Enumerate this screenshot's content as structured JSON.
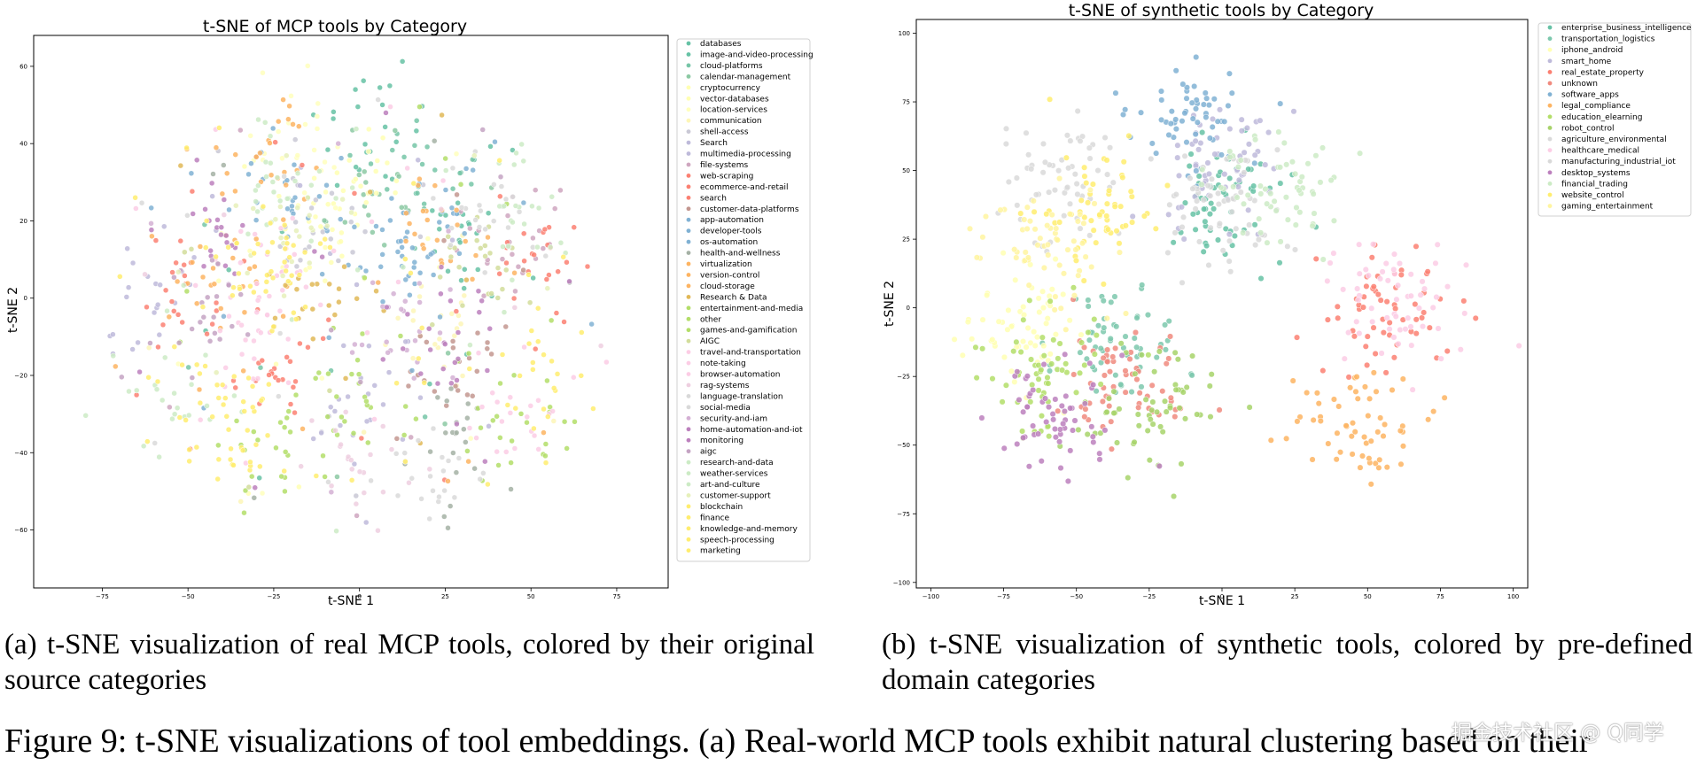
{
  "chart_data": [
    {
      "type": "scatter",
      "title": "t-SNE of MCP tools by Category",
      "xlabel": "t-SNE 1",
      "ylabel": "t-SNE 2",
      "xlim": [
        -95,
        90
      ],
      "ylim": [
        -75,
        68
      ],
      "xticks": [
        -75,
        -50,
        -25,
        0,
        25,
        50,
        75
      ],
      "yticks": [
        -60,
        -40,
        -20,
        0,
        20,
        40,
        60
      ],
      "legend_position": "right",
      "categories": [
        {
          "name": "databases",
          "color": "#66c2a5"
        },
        {
          "name": "image-and-video-processing",
          "color": "#66c2a5"
        },
        {
          "name": "cloud-platforms",
          "color": "#76c5a7"
        },
        {
          "name": "calendar-management",
          "color": "#8cc9a3"
        },
        {
          "name": "cryptocurrency",
          "color": "#ffffb3"
        },
        {
          "name": "vector-databases",
          "color": "#ffffb3"
        },
        {
          "name": "location-services",
          "color": "#ffffbd"
        },
        {
          "name": "communication",
          "color": "#fdf6b7"
        },
        {
          "name": "shell-access",
          "color": "#c9c8d5"
        },
        {
          "name": "Search",
          "color": "#bebada"
        },
        {
          "name": "multimedia-processing",
          "color": "#bebada"
        },
        {
          "name": "file-systems",
          "color": "#cfa6bf"
        },
        {
          "name": "web-scraping",
          "color": "#fb8072"
        },
        {
          "name": "ecommerce-and-retail",
          "color": "#fb8072"
        },
        {
          "name": "search",
          "color": "#fb8072"
        },
        {
          "name": "customer-data-platforms",
          "color": "#c3968f"
        },
        {
          "name": "app-automation",
          "color": "#80b1d3"
        },
        {
          "name": "developer-tools",
          "color": "#80b1d3"
        },
        {
          "name": "os-automation",
          "color": "#80b1d3"
        },
        {
          "name": "health-and-wellness",
          "color": "#a5b1a5"
        },
        {
          "name": "virtualization",
          "color": "#fdb462"
        },
        {
          "name": "version-control",
          "color": "#fdb462"
        },
        {
          "name": "cloud-storage",
          "color": "#fdb462"
        },
        {
          "name": "Research & Data",
          "color": "#e1b857"
        },
        {
          "name": "entertainment-and-media",
          "color": "#b3de69"
        },
        {
          "name": "other",
          "color": "#b3de69"
        },
        {
          "name": "games-and-gamification",
          "color": "#b3de69"
        },
        {
          "name": "AIGC",
          "color": "#d2dd9b"
        },
        {
          "name": "travel-and-transportation",
          "color": "#fccde5"
        },
        {
          "name": "note-taking",
          "color": "#fccde5"
        },
        {
          "name": "browser-automation",
          "color": "#fccde5"
        },
        {
          "name": "rag-systems",
          "color": "#eecfe0"
        },
        {
          "name": "language-translation",
          "color": "#d9d9d9"
        },
        {
          "name": "social-media",
          "color": "#d9d9d9"
        },
        {
          "name": "security-and-iam",
          "color": "#d4b0d4"
        },
        {
          "name": "home-automation-and-iot",
          "color": "#bc80bd"
        },
        {
          "name": "monitoring",
          "color": "#bc80bd"
        },
        {
          "name": "aigc",
          "color": "#c4a3c3"
        },
        {
          "name": "research-and-data",
          "color": "#ccebc5"
        },
        {
          "name": "weather-services",
          "color": "#ccebc5"
        },
        {
          "name": "art-and-culture",
          "color": "#ccebc5"
        },
        {
          "name": "customer-support",
          "color": "#e6f0ba"
        },
        {
          "name": "blockchain",
          "color": "#ffed6f"
        },
        {
          "name": "finance",
          "color": "#ffed6f"
        },
        {
          "name": "knowledge-and-memory",
          "color": "#ffed6f"
        },
        {
          "name": "speech-processing",
          "color": "#ffed6f"
        },
        {
          "name": "marketing",
          "color": "#ffed6f"
        }
      ]
    },
    {
      "type": "scatter",
      "title": "t-SNE of synthetic tools by Category",
      "xlabel": "t-SNE 1",
      "ylabel": "t-SNE 2",
      "xlim": [
        -105,
        105
      ],
      "ylim": [
        -102,
        105
      ],
      "xticks": [
        -100,
        -75,
        -50,
        -25,
        0,
        25,
        50,
        75,
        100
      ],
      "yticks": [
        -100,
        -75,
        -50,
        -25,
        0,
        25,
        50,
        75,
        100
      ],
      "legend_position": "right",
      "categories": [
        {
          "name": "enterprise_business_intelligence",
          "color": "#66c2a5"
        },
        {
          "name": "transportation_logistics",
          "color": "#7cc8ad"
        },
        {
          "name": "iphone_android",
          "color": "#ffffb3"
        },
        {
          "name": "smart_home",
          "color": "#bebada"
        },
        {
          "name": "real_estate_property",
          "color": "#fb8072"
        },
        {
          "name": "unknown",
          "color": "#f08a7e"
        },
        {
          "name": "software_apps",
          "color": "#80b1d3"
        },
        {
          "name": "legal_compliance",
          "color": "#fdb462"
        },
        {
          "name": "education_elearning",
          "color": "#b3de69"
        },
        {
          "name": "robot_control",
          "color": "#a7d36a"
        },
        {
          "name": "agriculture_environmental",
          "color": "#d9d9d9"
        },
        {
          "name": "healthcare_medical",
          "color": "#fccde5"
        },
        {
          "name": "manufacturing_industrial_iot",
          "color": "#d9d9d9"
        },
        {
          "name": "desktop_systems",
          "color": "#bc80bd"
        },
        {
          "name": "financial_trading",
          "color": "#ccebc5"
        },
        {
          "name": "website_control",
          "color": "#ffed6f"
        },
        {
          "name": "gaming_entertainment",
          "color": "#fff5a0"
        }
      ]
    }
  ],
  "captions": {
    "a": "(a) t-SNE visualization of real MCP tools, colored by their original source categories",
    "b": "(b) t-SNE visualization of synthetic tools, colored by pre-defined domain categories",
    "figure": "Figure 9: t-SNE visualizations of tool embeddings. (a) Real-world MCP tools exhibit natural clustering based on their"
  },
  "watermark": "掘金技术社区 @ Q同学"
}
